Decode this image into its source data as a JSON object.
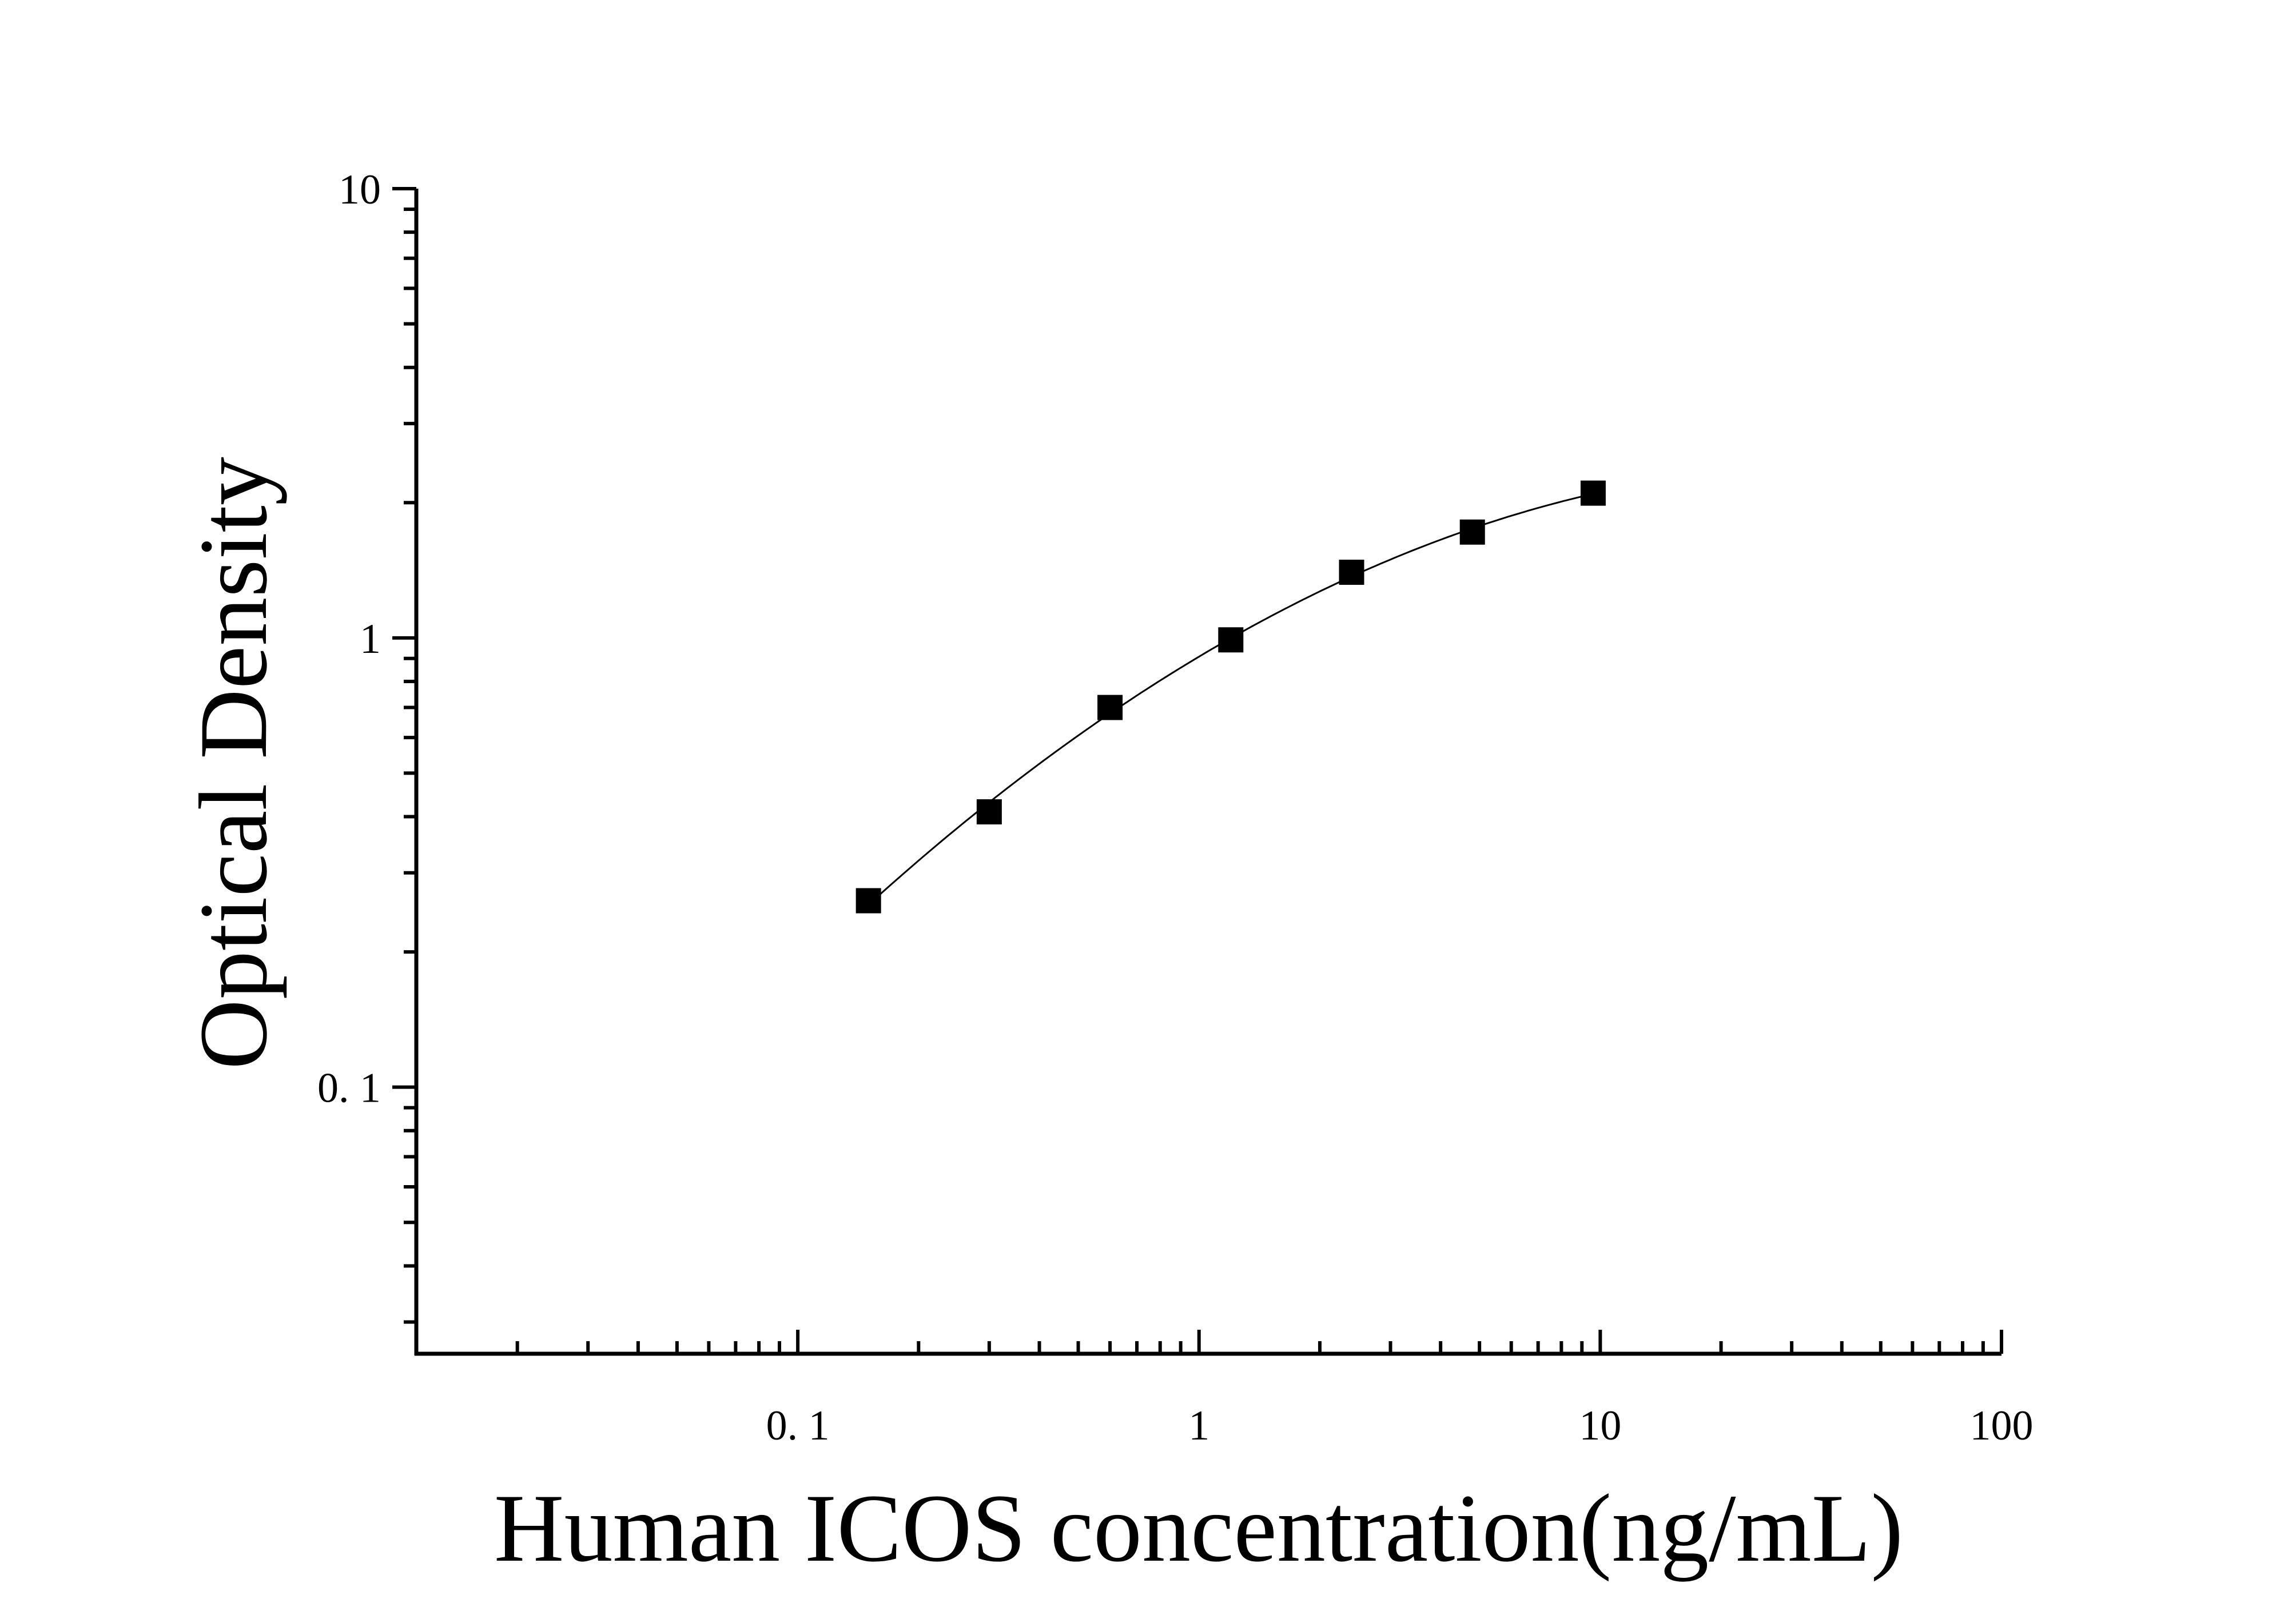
{
  "chart_data": {
    "type": "scatter",
    "xlabel": "Human ICOS concentration(ng/mL)",
    "ylabel": "Optical Density",
    "x_scale": "log",
    "y_scale": "log",
    "xlim": [
      0.0112,
      100
    ],
    "ylim": [
      0.0255,
      10
    ],
    "x_ticks": [
      {
        "value": 0.1,
        "label": "0. 1"
      },
      {
        "value": 1,
        "label": "1"
      },
      {
        "value": 10,
        "label": "10"
      },
      {
        "value": 100,
        "label": "100"
      }
    ],
    "y_ticks": [
      {
        "value": 0.1,
        "label": "0. 1"
      },
      {
        "value": 1,
        "label": "1"
      },
      {
        "value": 10,
        "label": "10"
      }
    ],
    "grid": false,
    "series": [
      {
        "marker": "square",
        "color": "#000000",
        "fit_line": true,
        "x": [
          0.15,
          0.3,
          0.6,
          1.2,
          2.4,
          4.8,
          9.6
        ],
        "y": [
          0.26,
          0.41,
          0.7,
          0.99,
          1.4,
          1.72,
          2.1
        ]
      }
    ]
  }
}
